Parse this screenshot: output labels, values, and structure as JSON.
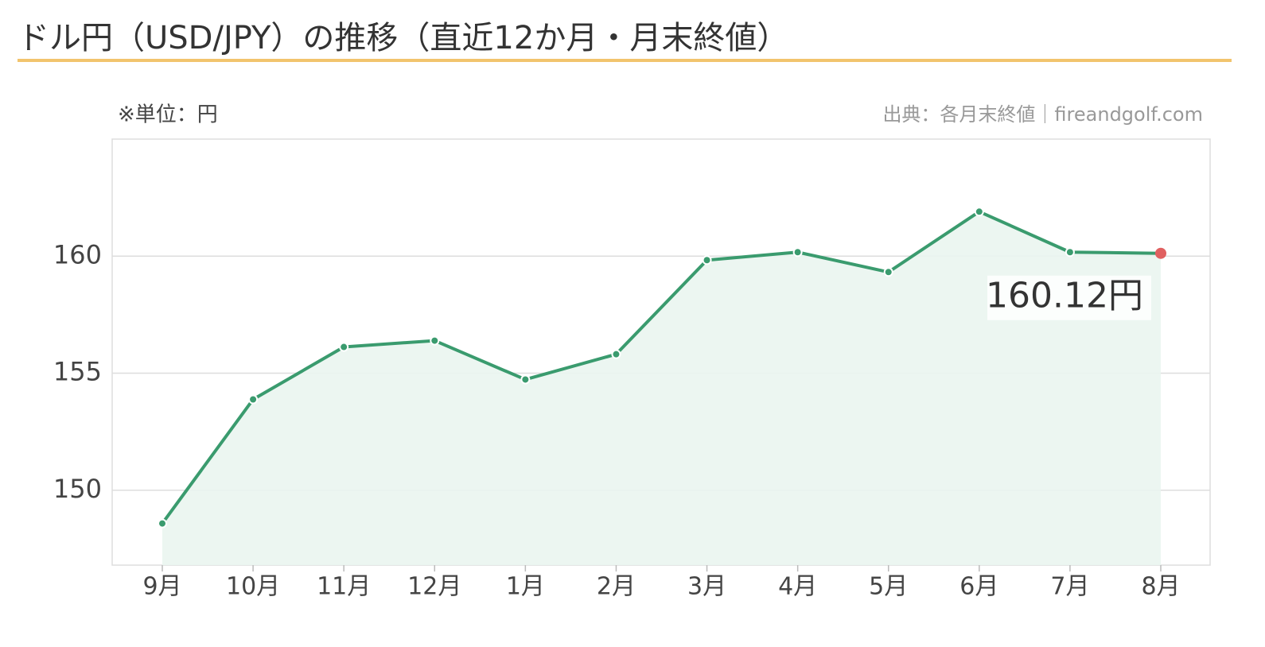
{
  "chart_data": {
    "type": "line",
    "title": "ドル円（USD/JPY）の推移（直近12か月・月末終値）",
    "unit_note": "※単位：円",
    "source": "出典：各月末終値｜fireandgolf.com",
    "categories": [
      "9月",
      "10月",
      "11月",
      "12月",
      "1月",
      "2月",
      "3月",
      "4月",
      "5月",
      "6月",
      "7月",
      "8月"
    ],
    "values": [
      148.58,
      153.88,
      156.12,
      156.39,
      154.73,
      155.81,
      159.83,
      160.17,
      159.32,
      161.9,
      160.17,
      160.12
    ],
    "value_labels": [
      null,
      null,
      null,
      null,
      null,
      null,
      null,
      null,
      null,
      null,
      null,
      "160.12円"
    ],
    "color": "#3a9b6e",
    "area_color": "#eaf5ef",
    "highlight_color": "#e06060",
    "ylim": [
      146.8,
      165
    ],
    "yticks": [
      150,
      155,
      160
    ],
    "grid": true
  }
}
